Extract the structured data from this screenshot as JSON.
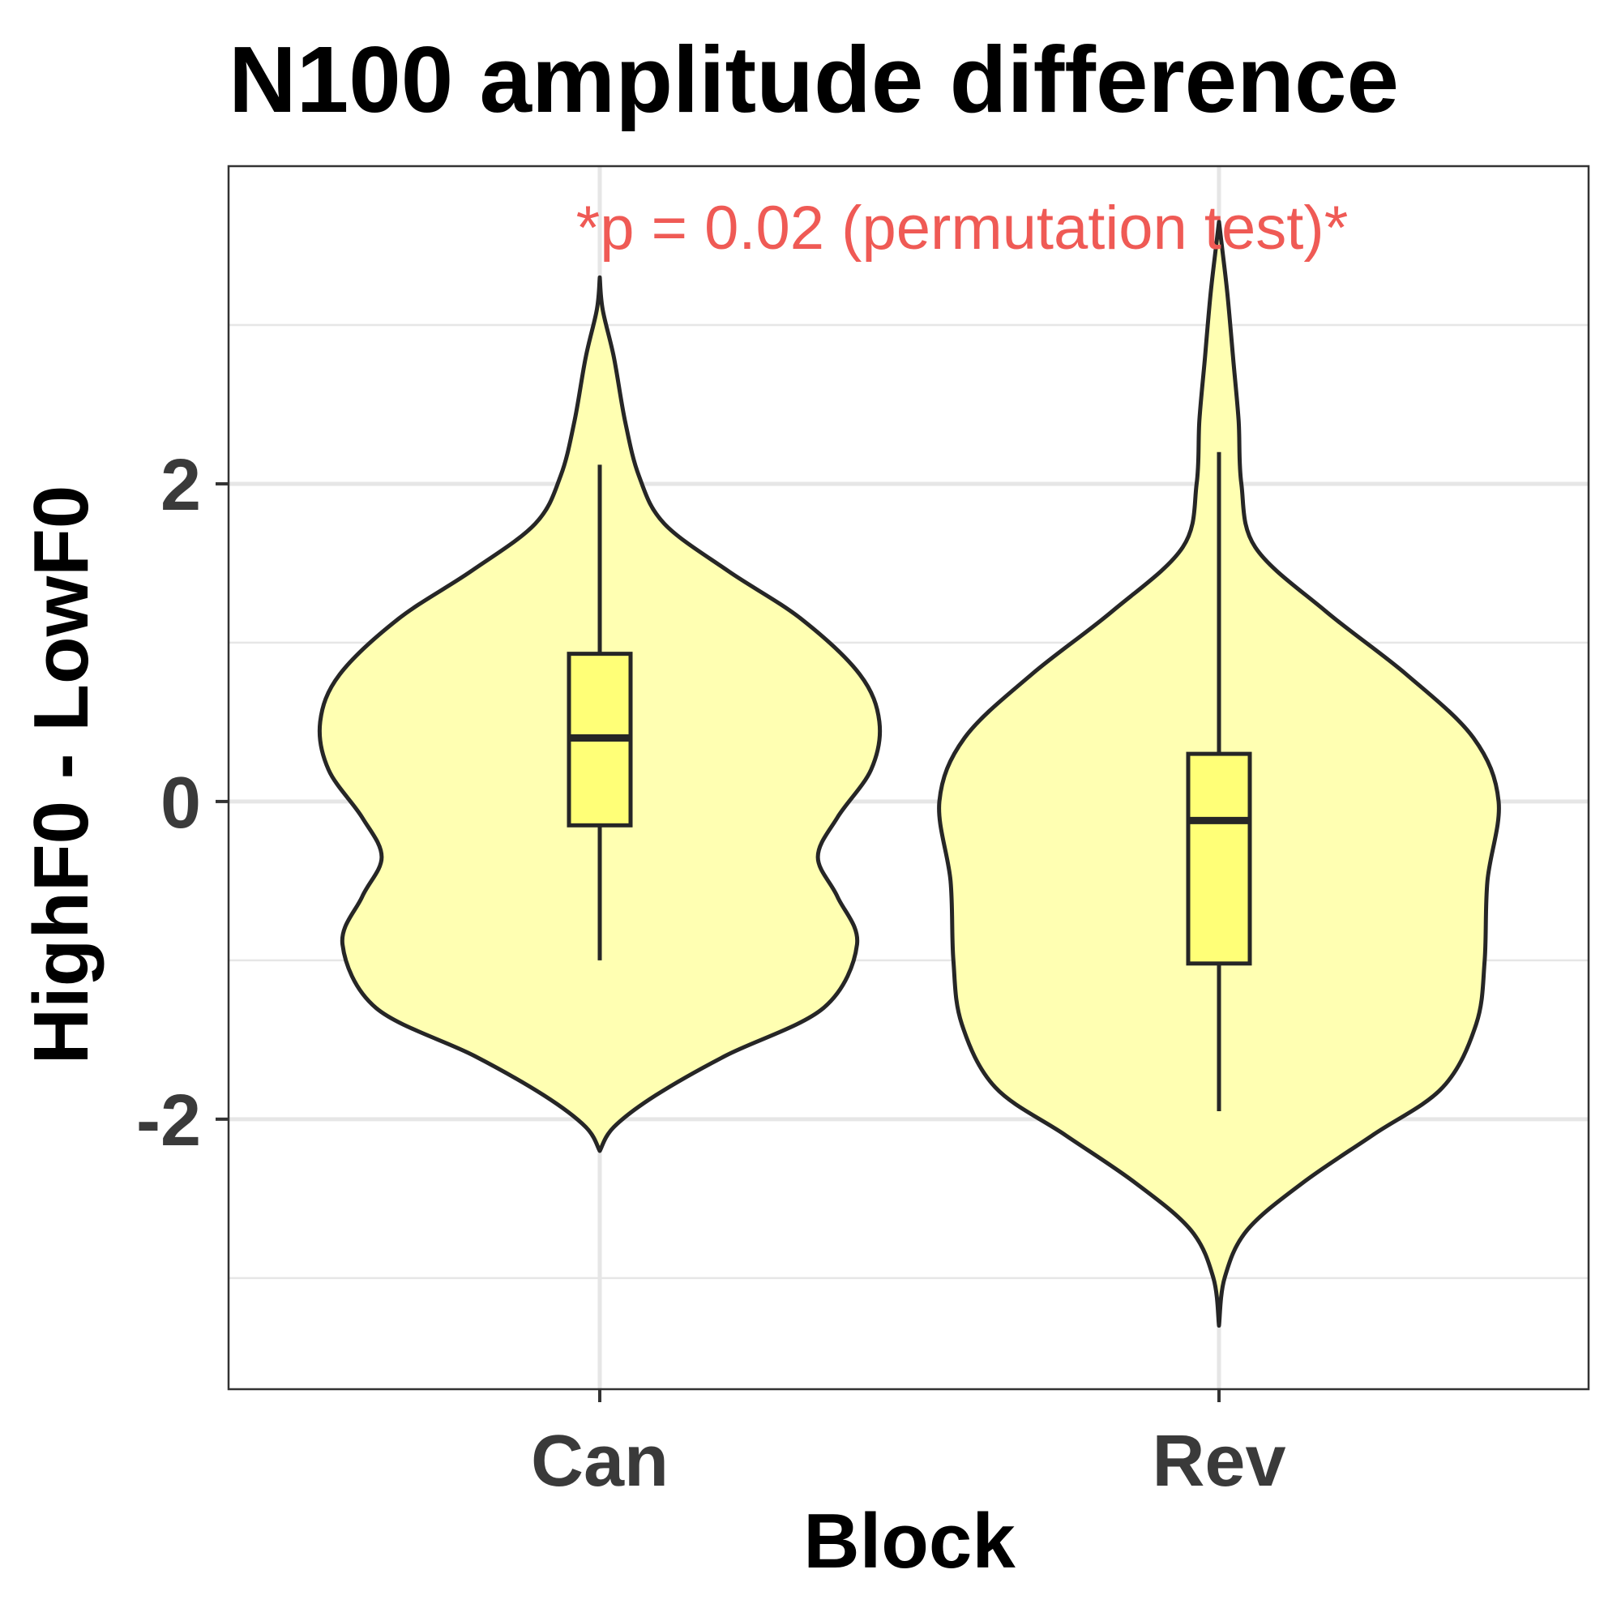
{
  "chart_data": {
    "type": "violin",
    "title": "N100 amplitude difference",
    "subtitle": "",
    "annotation": "*p = 0.02 (permutation test)*",
    "xlabel": "Block",
    "ylabel": "HighF0 - LowF0",
    "categories": [
      "Can",
      "Rev"
    ],
    "ylim": [
      -3.7,
      4.0
    ],
    "yticks": [
      -2,
      0,
      2
    ],
    "ytick_labels": [
      "-2",
      "0",
      "2"
    ],
    "minor_gridlines": [
      -3,
      -1,
      1,
      3
    ],
    "grid": true,
    "legend": "none",
    "colors": {
      "violin_fill": "#ffffb2",
      "box_fill": "#ffff77",
      "outline": "#262626",
      "annotation": "#ef5a55",
      "grid": "#e6e6e6",
      "tick_label": "#3a3a3a"
    },
    "series": [
      {
        "category": "Can",
        "box": {
          "min": -1.0,
          "q1": -0.15,
          "median": 0.4,
          "q3": 0.93,
          "max": 2.12
        },
        "violin_range": [
          -2.2,
          3.3
        ],
        "density": [
          [
            -2.2,
            0.0
          ],
          [
            -2.05,
            0.05
          ],
          [
            -1.85,
            0.2
          ],
          [
            -1.6,
            0.45
          ],
          [
            -1.3,
            0.8
          ],
          [
            -0.9,
            0.92
          ],
          [
            -0.6,
            0.85
          ],
          [
            -0.35,
            0.78
          ],
          [
            -0.1,
            0.85
          ],
          [
            0.2,
            0.97
          ],
          [
            0.5,
            1.0
          ],
          [
            0.8,
            0.93
          ],
          [
            1.15,
            0.72
          ],
          [
            1.45,
            0.46
          ],
          [
            1.75,
            0.23
          ],
          [
            2.05,
            0.14
          ],
          [
            2.4,
            0.09
          ],
          [
            2.8,
            0.05
          ],
          [
            3.1,
            0.01
          ],
          [
            3.3,
            0.0
          ]
        ]
      },
      {
        "category": "Rev",
        "box": {
          "min": -1.95,
          "q1": -1.02,
          "median": -0.12,
          "q3": 0.3,
          "max": 2.2
        },
        "violin_range": [
          -3.3,
          3.65
        ],
        "density": [
          [
            -3.3,
            0.0
          ],
          [
            -3.0,
            0.02
          ],
          [
            -2.7,
            0.1
          ],
          [
            -2.4,
            0.3
          ],
          [
            -2.1,
            0.55
          ],
          [
            -1.8,
            0.8
          ],
          [
            -1.4,
            0.92
          ],
          [
            -1.0,
            0.95
          ],
          [
            -0.5,
            0.96
          ],
          [
            0.0,
            1.0
          ],
          [
            0.4,
            0.91
          ],
          [
            0.8,
            0.67
          ],
          [
            1.2,
            0.38
          ],
          [
            1.6,
            0.13
          ],
          [
            2.0,
            0.08
          ],
          [
            2.4,
            0.07
          ],
          [
            2.8,
            0.05
          ],
          [
            3.2,
            0.03
          ],
          [
            3.5,
            0.01
          ],
          [
            3.65,
            0.0
          ]
        ]
      }
    ]
  }
}
